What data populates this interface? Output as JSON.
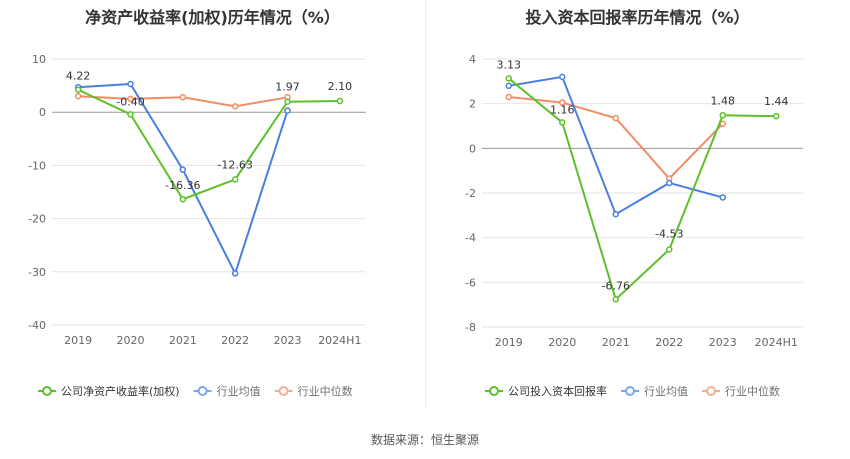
{
  "source_label": "数据来源：恒生聚源",
  "legend_extra": [
    "行业均值",
    "行业中位数"
  ],
  "colors": {
    "company": "#5cc02a",
    "avg": "#4a7fe0",
    "median": "#f28c66"
  },
  "chart_data": [
    {
      "type": "line",
      "title": "净资产收益率(加权)历年情况（%）",
      "categories": [
        "2019",
        "2020",
        "2021",
        "2022",
        "2023",
        "2024H1"
      ],
      "ylim": [
        -40,
        10
      ],
      "yticks": [
        10,
        0,
        -10,
        -20,
        -30,
        -40
      ],
      "grid": true,
      "legend_position": "bottom",
      "series": [
        {
          "name": "公司净资产收益率(加权)",
          "key": "company",
          "values": [
            4.22,
            -0.4,
            -16.36,
            -12.63,
            1.97,
            2.1
          ],
          "labels": [
            "4.22",
            "-0.40",
            "-16.36",
            "-12.63",
            "1.97",
            "2.10"
          ]
        },
        {
          "name": "行业均值",
          "key": "avg",
          "values": [
            4.7,
            5.3,
            -10.8,
            -30.3,
            0.3,
            null
          ]
        },
        {
          "name": "行业中位数",
          "key": "median",
          "values": [
            3.0,
            2.5,
            2.8,
            1.1,
            2.8,
            null
          ]
        }
      ]
    },
    {
      "type": "line",
      "title": "投入资本回报率历年情况（%）",
      "categories": [
        "2019",
        "2020",
        "2021",
        "2022",
        "2023",
        "2024H1"
      ],
      "ylim": [
        -8,
        4
      ],
      "yticks": [
        4,
        2,
        0,
        -2,
        -4,
        -6,
        -8
      ],
      "grid": true,
      "legend_position": "bottom",
      "series": [
        {
          "name": "公司投入资本回报率",
          "key": "company",
          "values": [
            3.13,
            1.16,
            -6.76,
            -4.53,
            1.48,
            1.44
          ],
          "labels": [
            "3.13",
            "1.16",
            "-6.76",
            "-4.53",
            "1.48",
            "1.44"
          ]
        },
        {
          "name": "行业均值",
          "key": "avg",
          "values": [
            2.8,
            3.2,
            -2.95,
            -1.55,
            -2.2,
            null
          ]
        },
        {
          "name": "行业中位数",
          "key": "median",
          "values": [
            2.3,
            2.05,
            1.35,
            -1.35,
            1.1,
            null
          ]
        }
      ]
    }
  ]
}
